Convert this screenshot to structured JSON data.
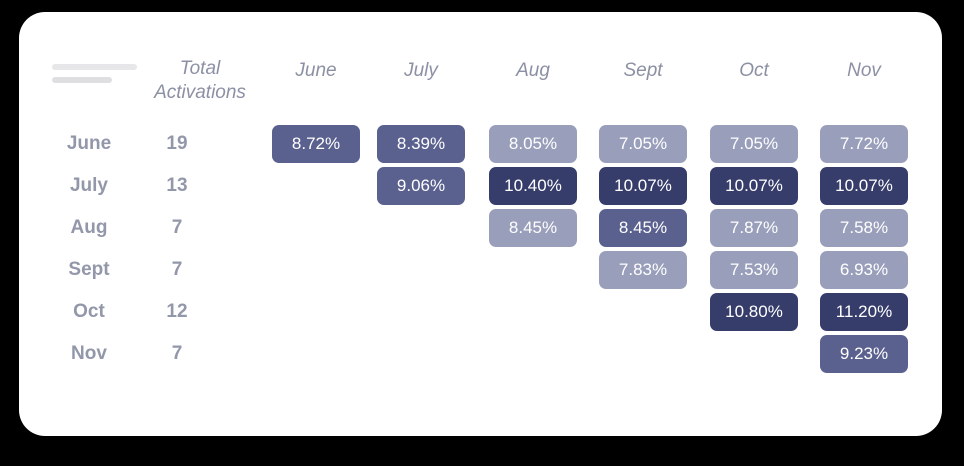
{
  "colors": {
    "page_bg": "#000000",
    "card_bg": "#FFFFFF",
    "shade_dark": "#363D6B",
    "shade_medium": "#5A618F",
    "shade_light": "#999EBB",
    "cell_text": "#FFFFFF",
    "column_header_text": "#8C90A4",
    "row_label_text": "#9397AA",
    "skeleton_bar_top": "#E7E7EA",
    "skeleton_bar_bottom": "#DFDFE2"
  },
  "chart_data": {
    "type": "heatmap",
    "title": "",
    "total_header_lines": [
      "Total",
      "Activations"
    ],
    "columns": [
      "June",
      "July",
      "Aug",
      "Sept",
      "Oct",
      "Nov"
    ],
    "rows": [
      "June",
      "July",
      "Aug",
      "Sept",
      "Oct",
      "Nov"
    ],
    "total_activations": [
      19,
      13,
      7,
      7,
      12,
      7
    ],
    "value_unit": "%",
    "value_decimals": 2,
    "matrix": [
      [
        8.72,
        8.39,
        8.05,
        7.05,
        7.05,
        7.72
      ],
      [
        null,
        9.06,
        10.4,
        10.07,
        10.07,
        10.07
      ],
      [
        null,
        null,
        8.45,
        8.45,
        7.87,
        7.58
      ],
      [
        null,
        null,
        null,
        7.83,
        7.53,
        6.93
      ],
      [
        null,
        null,
        null,
        null,
        10.8,
        11.2
      ],
      [
        null,
        null,
        null,
        null,
        null,
        9.23
      ]
    ],
    "shade_matrix": [
      [
        "m",
        "m",
        "l",
        "l",
        "l",
        "l"
      ],
      [
        null,
        "m",
        "d",
        "d",
        "d",
        "d"
      ],
      [
        null,
        null,
        "l",
        "m",
        "l",
        "l"
      ],
      [
        null,
        null,
        null,
        "l",
        "l",
        "l"
      ],
      [
        null,
        null,
        null,
        null,
        "d",
        "d"
      ],
      [
        null,
        null,
        null,
        null,
        null,
        "m"
      ]
    ],
    "legend_position": "none",
    "grid": false
  }
}
